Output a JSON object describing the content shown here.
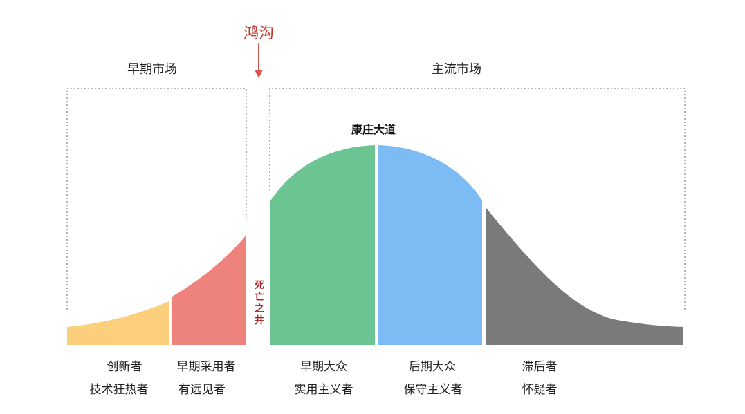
{
  "labels": {
    "chasm": "鸿沟",
    "early_market": "早期市场",
    "mainstream_market": "主流市场",
    "peak": "康庄大道",
    "death_well": "死亡之井"
  },
  "segments": [
    {
      "name": "创新者",
      "trait": "技术狂热者",
      "color": "#fccf7d"
    },
    {
      "name": "早期采用者",
      "trait": "有远见者",
      "color": "#ee827d"
    },
    {
      "name": "早期大众",
      "trait": "实用主义者",
      "color": "#6bc492"
    },
    {
      "name": "后期大众",
      "trait": "保守主义者",
      "color": "#7dbbf4"
    },
    {
      "name": "滞后者",
      "trait": "怀疑者",
      "color": "#7a7a7a"
    }
  ],
  "colors": {
    "chasm_arrow": "#d9534f",
    "bracket": "#8a8a8a"
  }
}
